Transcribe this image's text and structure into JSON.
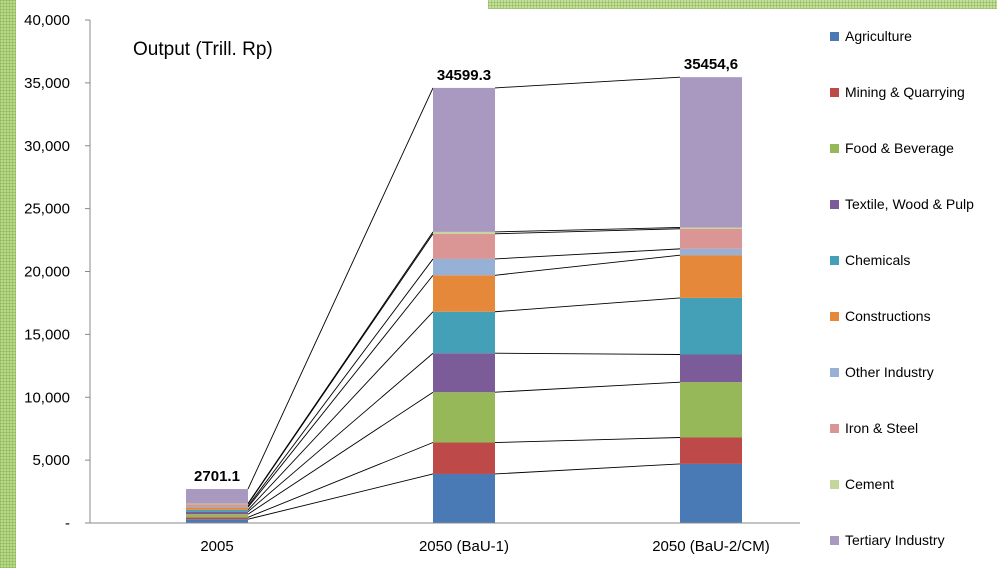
{
  "chart_data": {
    "type": "bar",
    "stacked": true,
    "title": "Output (Trill. Rp)",
    "categories": [
      "2005",
      "2050 (BaU-1)",
      "2050 (BaU-2/CM)"
    ],
    "ylim": [
      0,
      40000
    ],
    "yticks": [
      0,
      5000,
      10000,
      15000,
      20000,
      25000,
      30000,
      35000,
      40000
    ],
    "ytick_labels": [
      "-",
      "5,000",
      "10,000",
      "15,000",
      "20,000",
      "25,000",
      "30,000",
      "35,000",
      "40,000"
    ],
    "grid": false,
    "legend_position": "right",
    "totals": [
      "2701.1",
      "34599.3",
      "35454,6"
    ],
    "series": [
      {
        "name": "Agriculture",
        "color": "#4a7ab5",
        "values": [
          300,
          3900,
          4700
        ]
      },
      {
        "name": "Mining & Quarrying",
        "color": "#bd4a48",
        "values": [
          150,
          2500,
          2100
        ]
      },
      {
        "name": "Food & Beverage",
        "color": "#97b858",
        "values": [
          250,
          4000,
          4400
        ]
      },
      {
        "name": "Textile, Wood & Pulp",
        "color": "#7b5c99",
        "values": [
          200,
          3100,
          2200
        ]
      },
      {
        "name": "Chemicals",
        "color": "#43a0b6",
        "values": [
          150,
          3300,
          4500
        ]
      },
      {
        "name": "Constructions",
        "color": "#e5883a",
        "values": [
          200,
          2900,
          3400
        ]
      },
      {
        "name": "Other Industry",
        "color": "#96b0d6",
        "values": [
          100,
          1300,
          500
        ]
      },
      {
        "name": "Iron & Steel",
        "color": "#d99694",
        "values": [
          150,
          2000,
          1600
        ]
      },
      {
        "name": "Cement",
        "color": "#c3d69b",
        "values": [
          50,
          150,
          100
        ]
      },
      {
        "name": "Tertiary Industry",
        "color": "#a998c0",
        "values": [
          1151.1,
          11449.3,
          11954.6
        ]
      }
    ]
  }
}
